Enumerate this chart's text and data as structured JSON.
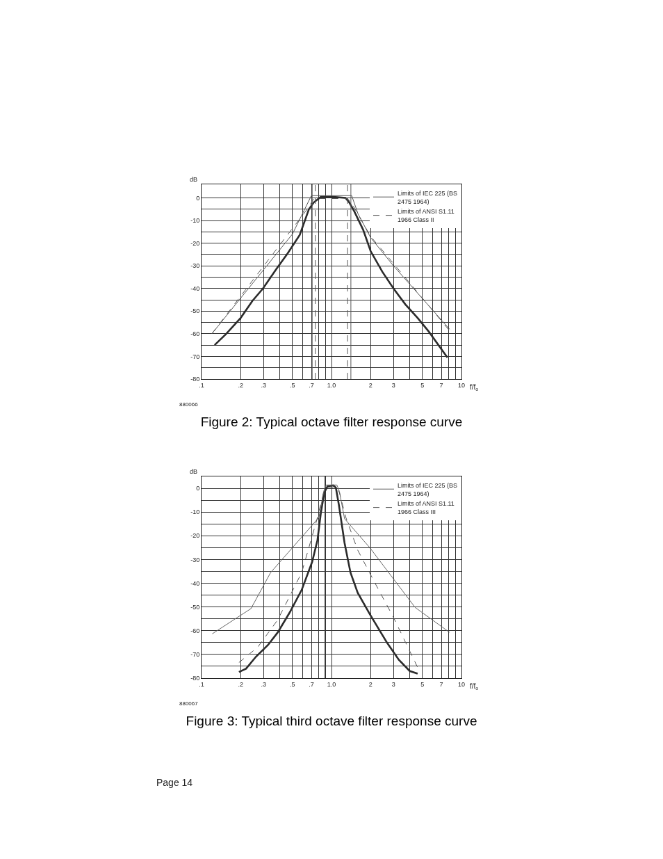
{
  "chart_data": [
    {
      "type": "line",
      "title": "Figure 2: Typical octave filter response curve",
      "xlabel": "f/f$_{o}$",
      "ylabel": "dB",
      "annotations": [
        "880066"
      ],
      "log": "x",
      "grid": true,
      "legend": "top right",
      "marker": "none",
      "xlim": [
        0.1,
        10
      ],
      "xticks": [
        {
          "value": 0.1,
          "label": ".1"
        },
        {
          "value": 0.2,
          "label": ".2"
        },
        {
          "value": 0.3,
          "label": ".3"
        },
        {
          "value": 0.4,
          "label": null
        },
        {
          "value": 0.5,
          "label": ".5"
        },
        {
          "value": 0.6,
          "label": null
        },
        {
          "value": 0.7,
          "label": ".7"
        },
        {
          "value": 0.8,
          "label": null
        },
        {
          "value": 0.9,
          "label": null
        },
        {
          "value": 1,
          "label": "1.0"
        },
        2,
        3,
        {
          "value": 4,
          "label": null
        },
        5,
        {
          "value": 6,
          "label": null
        },
        7,
        {
          "value": 8,
          "label": null
        },
        {
          "value": 9,
          "label": null
        },
        10
      ],
      "ylim": [
        -80,
        6
      ],
      "yticks": [
        -80,
        {
          "value": -75,
          "label": null
        },
        -70,
        {
          "value": -65,
          "label": null
        },
        -60,
        {
          "value": -55,
          "label": null
        },
        -50,
        {
          "value": -45,
          "label": null
        },
        -40,
        {
          "value": -35,
          "label": null
        },
        -30,
        {
          "value": -25,
          "label": null
        },
        -20,
        {
          "value": -15,
          "label": null
        },
        -10,
        {
          "value": -5,
          "label": null
        },
        0
      ],
      "ref_lines": [
        {
          "axis": "x",
          "value": 0.71,
          "color": "#555555",
          "line_style": "solid"
        },
        {
          "axis": "x",
          "value": 1.41,
          "color": "#555555",
          "line_style": "solid"
        },
        {
          "axis": "x",
          "value": 0.75,
          "color": "#555555",
          "line_style": "dashed"
        },
        {
          "axis": "x",
          "value": 1.33,
          "color": "#555555",
          "line_style": "dashed"
        }
      ],
      "series": [
        {
          "color": "#2b2b2b",
          "line_style": "solid",
          "x": [
            0.126,
            0.155,
            0.2,
            0.246,
            0.297,
            0.374,
            0.46,
            0.57,
            0.67,
            0.73,
            0.83,
            1.0,
            1.28,
            1.37,
            1.5,
            1.75,
            2.0,
            2.46,
            3.0,
            3.7,
            4.6,
            5.6,
            7.8
          ],
          "values": [
            -65,
            -60,
            -53,
            -45.5,
            -40,
            -31.6,
            -24.5,
            -16.3,
            -5,
            -2,
            0.5,
            0.5,
            0,
            -2,
            -6,
            -14,
            -23.5,
            -32.6,
            -40,
            -47,
            -53,
            -59,
            -70.5
          ]
        },
        {
          "name": "Limits of IEC 225 (BS 2475 1964)",
          "color": "#555555",
          "line_style": "solid",
          "x": [
            0.12,
            0.5,
            0.7,
            1.43,
            1.6,
            2.0,
            3.0,
            8.1
          ],
          "values": [
            -60,
            -16,
            1,
            1,
            -7,
            -17.5,
            -30,
            -58
          ]
        },
        {
          "name": "Limits of ANSI S1.11 1966 Class II",
          "color": "#555555",
          "line_style": "dashed",
          "x": [
            0.12,
            0.67,
            0.73,
            1.33,
            1.45,
            2.0,
            3.0,
            8.2
          ],
          "values": [
            -60,
            -4,
            -0.3,
            -0.3,
            -3,
            -17,
            -29,
            -59
          ]
        }
      ]
    },
    {
      "type": "line",
      "title": "Figure 3: Typical third octave filter response curve",
      "xlabel": "f/f$_{o}$",
      "ylabel": "dB",
      "annotations": [
        "880067",
        "Page 14"
      ],
      "log": "x",
      "grid": true,
      "legend": "top right",
      "marker": "none",
      "xlim": [
        0.1,
        10
      ],
      "xticks": [
        {
          "value": 0.1,
          "label": ".1"
        },
        {
          "value": 0.2,
          "label": ".2"
        },
        {
          "value": 0.3,
          "label": ".3"
        },
        {
          "value": 0.4,
          "label": null
        },
        {
          "value": 0.5,
          "label": ".5"
        },
        {
          "value": 0.6,
          "label": null
        },
        {
          "value": 0.7,
          "label": ".7"
        },
        {
          "value": 0.8,
          "label": null
        },
        {
          "value": 0.9,
          "label": null
        },
        {
          "value": 1,
          "label": "1.0"
        },
        2,
        3,
        {
          "value": 4,
          "label": null
        },
        5,
        {
          "value": 6,
          "label": null
        },
        7,
        {
          "value": 8,
          "label": null
        },
        {
          "value": 9,
          "label": null
        },
        10
      ],
      "ylim": [
        -80,
        5
      ],
      "yticks": [
        -80,
        {
          "value": -75,
          "label": null
        },
        -70,
        {
          "value": -65,
          "label": null
        },
        -60,
        {
          "value": -55,
          "label": null
        },
        -50,
        {
          "value": -45,
          "label": null
        },
        -40,
        {
          "value": -35,
          "label": null
        },
        -30,
        {
          "value": -25,
          "label": null
        },
        -20,
        {
          "value": -15,
          "label": null
        },
        -10,
        {
          "value": -5,
          "label": null
        },
        0
      ],
      "ref_lines": [
        {
          "axis": "x",
          "value": 0.89,
          "color": "#444444",
          "line_style": "solid"
        }
      ],
      "series": [
        {
          "color": "#2b2b2b",
          "line_style": "solid",
          "x": [
            0.194,
            0.22,
            0.262,
            0.325,
            0.386,
            0.477,
            0.59,
            0.71,
            0.78,
            0.83,
            0.88,
            0.93,
            1.03,
            1.08,
            1.14,
            1.26,
            1.4,
            1.59,
            1.97,
            2.67,
            3.3,
            4.0,
            4.6
          ],
          "values": [
            -77.4,
            -76,
            -71,
            -66,
            -60.7,
            -52.3,
            -42.8,
            -31,
            -21.8,
            -10,
            -1.8,
            0.8,
            1.2,
            0.3,
            -7,
            -23,
            -35.5,
            -44,
            -53,
            -65,
            -72.3,
            -77,
            -78.1
          ]
        },
        {
          "name": "Limits of IEC 225 (BS 2475 1964)",
          "color": "#666666",
          "line_style": "solid",
          "x": [
            0.121,
            0.24,
            0.34,
            0.8,
            0.87,
            0.91,
            1.1,
            1.15,
            1.26,
            1.97,
            4.4,
            8.1
          ],
          "values": [
            -61.3,
            -50.7,
            -35.5,
            -12.3,
            -1.3,
            1.4,
            1.4,
            -1.3,
            -12.8,
            -25,
            -50.2,
            -60.7
          ]
        },
        {
          "name": "Limits of ANSI S1.11 1966 Class III",
          "color": "#555555",
          "line_style": "dashed",
          "x": [
            0.194,
            0.27,
            0.385,
            0.59,
            0.77,
            0.88,
            0.93,
            1.08,
            1.15,
            1.29,
            1.59,
            2.15,
            3.0,
            4.6
          ],
          "values": [
            -73.4,
            -67,
            -55.5,
            -35.5,
            -13.4,
            -0.7,
            0.3,
            0.3,
            -1.8,
            -12.3,
            -26,
            -39.7,
            -54.4,
            -75.5
          ]
        }
      ]
    }
  ]
}
